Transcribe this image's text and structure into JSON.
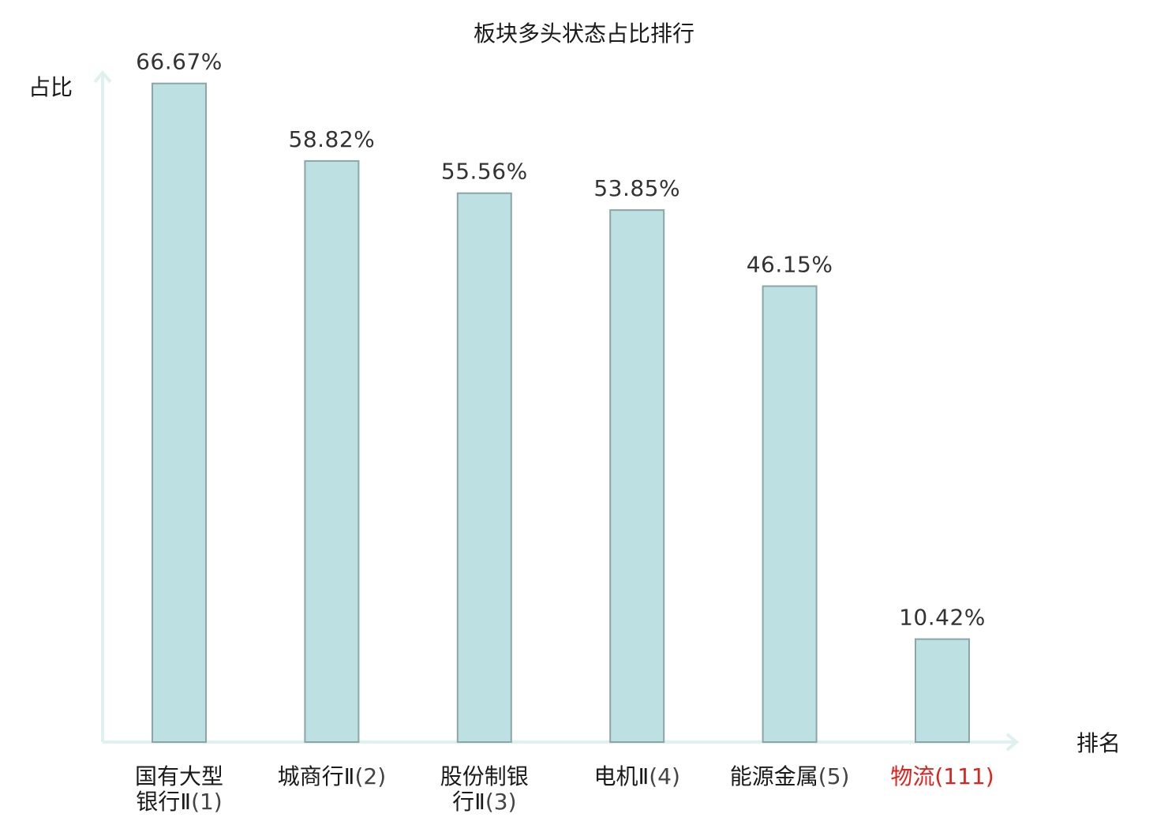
{
  "chart_data": {
    "type": "bar",
    "title": "板块多头状态占比排行",
    "ylabel": "占比",
    "xlabel": "排名",
    "ylim": [
      0,
      70
    ],
    "grid": false,
    "legend": "none",
    "categories": [
      {
        "name_lines": [
          "国有大型",
          "银行Ⅱ"
        ],
        "rank": "(1)"
      },
      {
        "name_lines": [
          "城商行Ⅱ"
        ],
        "rank": "(2)"
      },
      {
        "name_lines": [
          "股份制银",
          "行Ⅱ"
        ],
        "rank": "(3)"
      },
      {
        "name_lines": [
          "电机Ⅱ"
        ],
        "rank": "(4)"
      },
      {
        "name_lines": [
          "能源金属"
        ],
        "rank": "(5)"
      },
      {
        "name_lines": [
          "物流"
        ],
        "rank": "(111)",
        "highlight": true
      }
    ],
    "values": [
      66.67,
      58.82,
      55.56,
      53.85,
      46.15,
      10.42
    ],
    "value_labels": [
      "66.67%",
      "58.82%",
      "55.56%",
      "53.85%",
      "46.15%",
      "10.42%"
    ]
  },
  "colors": {
    "bar_fill": "#bde0e3",
    "bar_stroke": "#8aa6a8",
    "axis": "#dff1ee",
    "highlight": "#e0211d"
  }
}
